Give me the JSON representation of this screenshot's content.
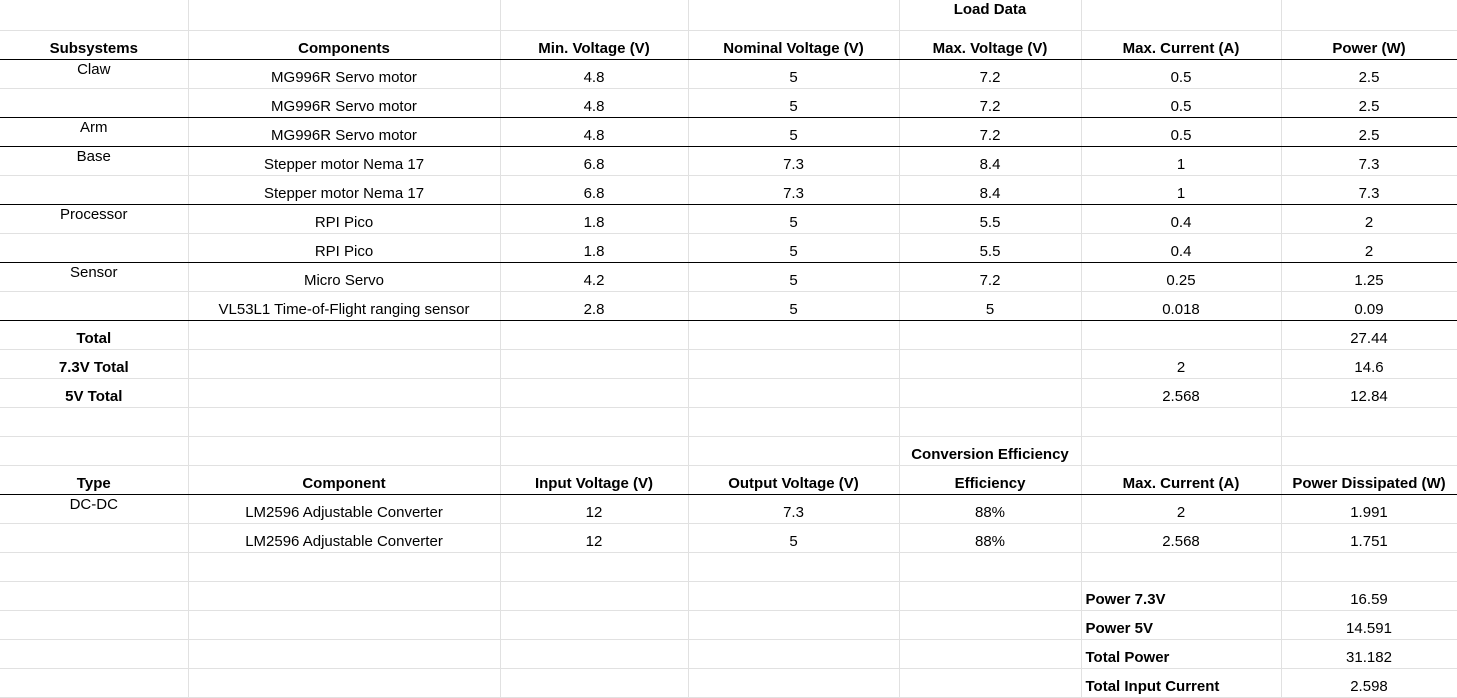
{
  "load_data": {
    "title": "Load Data",
    "headers": [
      "Subsystems",
      "Components",
      "Min. Voltage (V)",
      "Nominal Voltage (V)",
      "Max. Voltage (V)",
      "Max. Current (A)",
      "Power (W)"
    ],
    "rows": [
      [
        "Claw",
        "MG996R Servo motor",
        "4.8",
        "5",
        "7.2",
        "0.5",
        "2.5"
      ],
      [
        "",
        "MG996R Servo motor",
        "4.8",
        "5",
        "7.2",
        "0.5",
        "2.5"
      ],
      [
        "Arm",
        "MG996R Servo motor",
        "4.8",
        "5",
        "7.2",
        "0.5",
        "2.5"
      ],
      [
        "Base",
        "Stepper motor Nema 17",
        "6.8",
        "7.3",
        "8.4",
        "1",
        "7.3"
      ],
      [
        "",
        "Stepper motor Nema 17",
        "6.8",
        "7.3",
        "8.4",
        "1",
        "7.3"
      ],
      [
        "Processor",
        "RPI Pico",
        "1.8",
        "5",
        "5.5",
        "0.4",
        "2"
      ],
      [
        "",
        "RPI Pico",
        "1.8",
        "5",
        "5.5",
        "0.4",
        "2"
      ],
      [
        "Sensor",
        "Micro Servo",
        "4.2",
        "5",
        "7.2",
        "0.25",
        "1.25"
      ],
      [
        "",
        "VL53L1 Time-of-Flight ranging sensor",
        "2.8",
        "5",
        "5",
        "0.018",
        "0.09"
      ]
    ],
    "totals": [
      {
        "label": "Total",
        "current": "",
        "power": "27.44"
      },
      {
        "label": "7.3V Total",
        "current": "2",
        "power": "14.6"
      },
      {
        "label": "5V Total",
        "current": "2.568",
        "power": "12.84"
      }
    ]
  },
  "conversion": {
    "title": "Conversion Efficiency",
    "headers": [
      "Type",
      "Component",
      "Input Voltage (V)",
      "Output Voltage (V)",
      "Efficiency",
      "Max. Current (A)",
      "Power Dissipated (W)"
    ],
    "rows": [
      [
        "DC-DC",
        "LM2596 Adjustable Converter",
        "12",
        "7.3",
        "88%",
        "2",
        "1.991"
      ],
      [
        "",
        "LM2596 Adjustable Converter",
        "12",
        "5",
        "88%",
        "2.568",
        "1.751"
      ]
    ],
    "summary": [
      {
        "label": "Power 7.3V",
        "value": "16.59"
      },
      {
        "label": "Power 5V",
        "value": "14.591"
      },
      {
        "label": "Total Power",
        "value": "31.182"
      },
      {
        "label": "Total Input Current",
        "value": "2.598"
      }
    ]
  }
}
